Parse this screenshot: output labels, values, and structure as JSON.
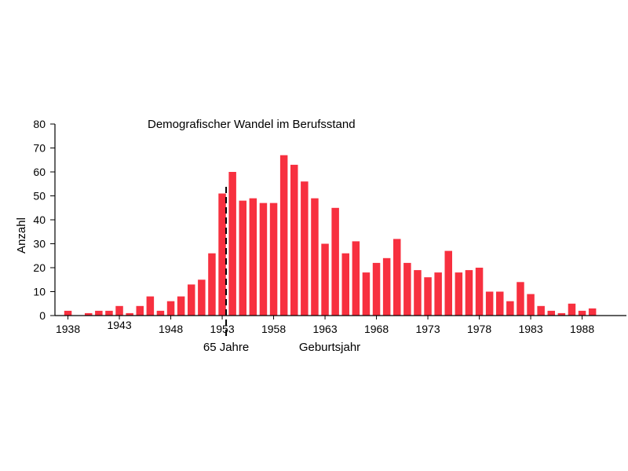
{
  "chart_data": {
    "type": "bar",
    "title": "Demografischer Wandel im Berufsstand",
    "xlabel": "Geburtsjahr",
    "ylabel": "Anzahl",
    "ylim": [
      0,
      80
    ],
    "yticks": [
      0,
      10,
      20,
      30,
      40,
      50,
      60,
      70,
      80
    ],
    "xticks": [
      1938,
      1943,
      1948,
      1953,
      1958,
      1963,
      1968,
      1973,
      1978,
      1983,
      1988
    ],
    "grid": false,
    "color": "#f7303f",
    "x": [
      1938,
      1939,
      1940,
      1941,
      1942,
      1943,
      1944,
      1945,
      1946,
      1947,
      1948,
      1949,
      1950,
      1951,
      1952,
      1953,
      1954,
      1955,
      1956,
      1957,
      1958,
      1959,
      1960,
      1961,
      1962,
      1963,
      1964,
      1965,
      1966,
      1967,
      1968,
      1969,
      1970,
      1971,
      1972,
      1973,
      1974,
      1975,
      1976,
      1977,
      1978,
      1979,
      1980,
      1981,
      1982,
      1983,
      1984,
      1985,
      1986,
      1987,
      1988,
      1989,
      1990
    ],
    "values": [
      2,
      0,
      1,
      2,
      2,
      4,
      1,
      4,
      8,
      2,
      6,
      8,
      13,
      15,
      26,
      51,
      60,
      48,
      49,
      47,
      47,
      67,
      63,
      56,
      49,
      30,
      45,
      26,
      31,
      18,
      22,
      24,
      32,
      22,
      19,
      16,
      18,
      27,
      18,
      19,
      20,
      10,
      10,
      6,
      14,
      9,
      4,
      2,
      1,
      5,
      2,
      3,
      0
    ],
    "annotation": {
      "year": 1953,
      "label": "65 Jahre",
      "style": "dashed"
    }
  }
}
